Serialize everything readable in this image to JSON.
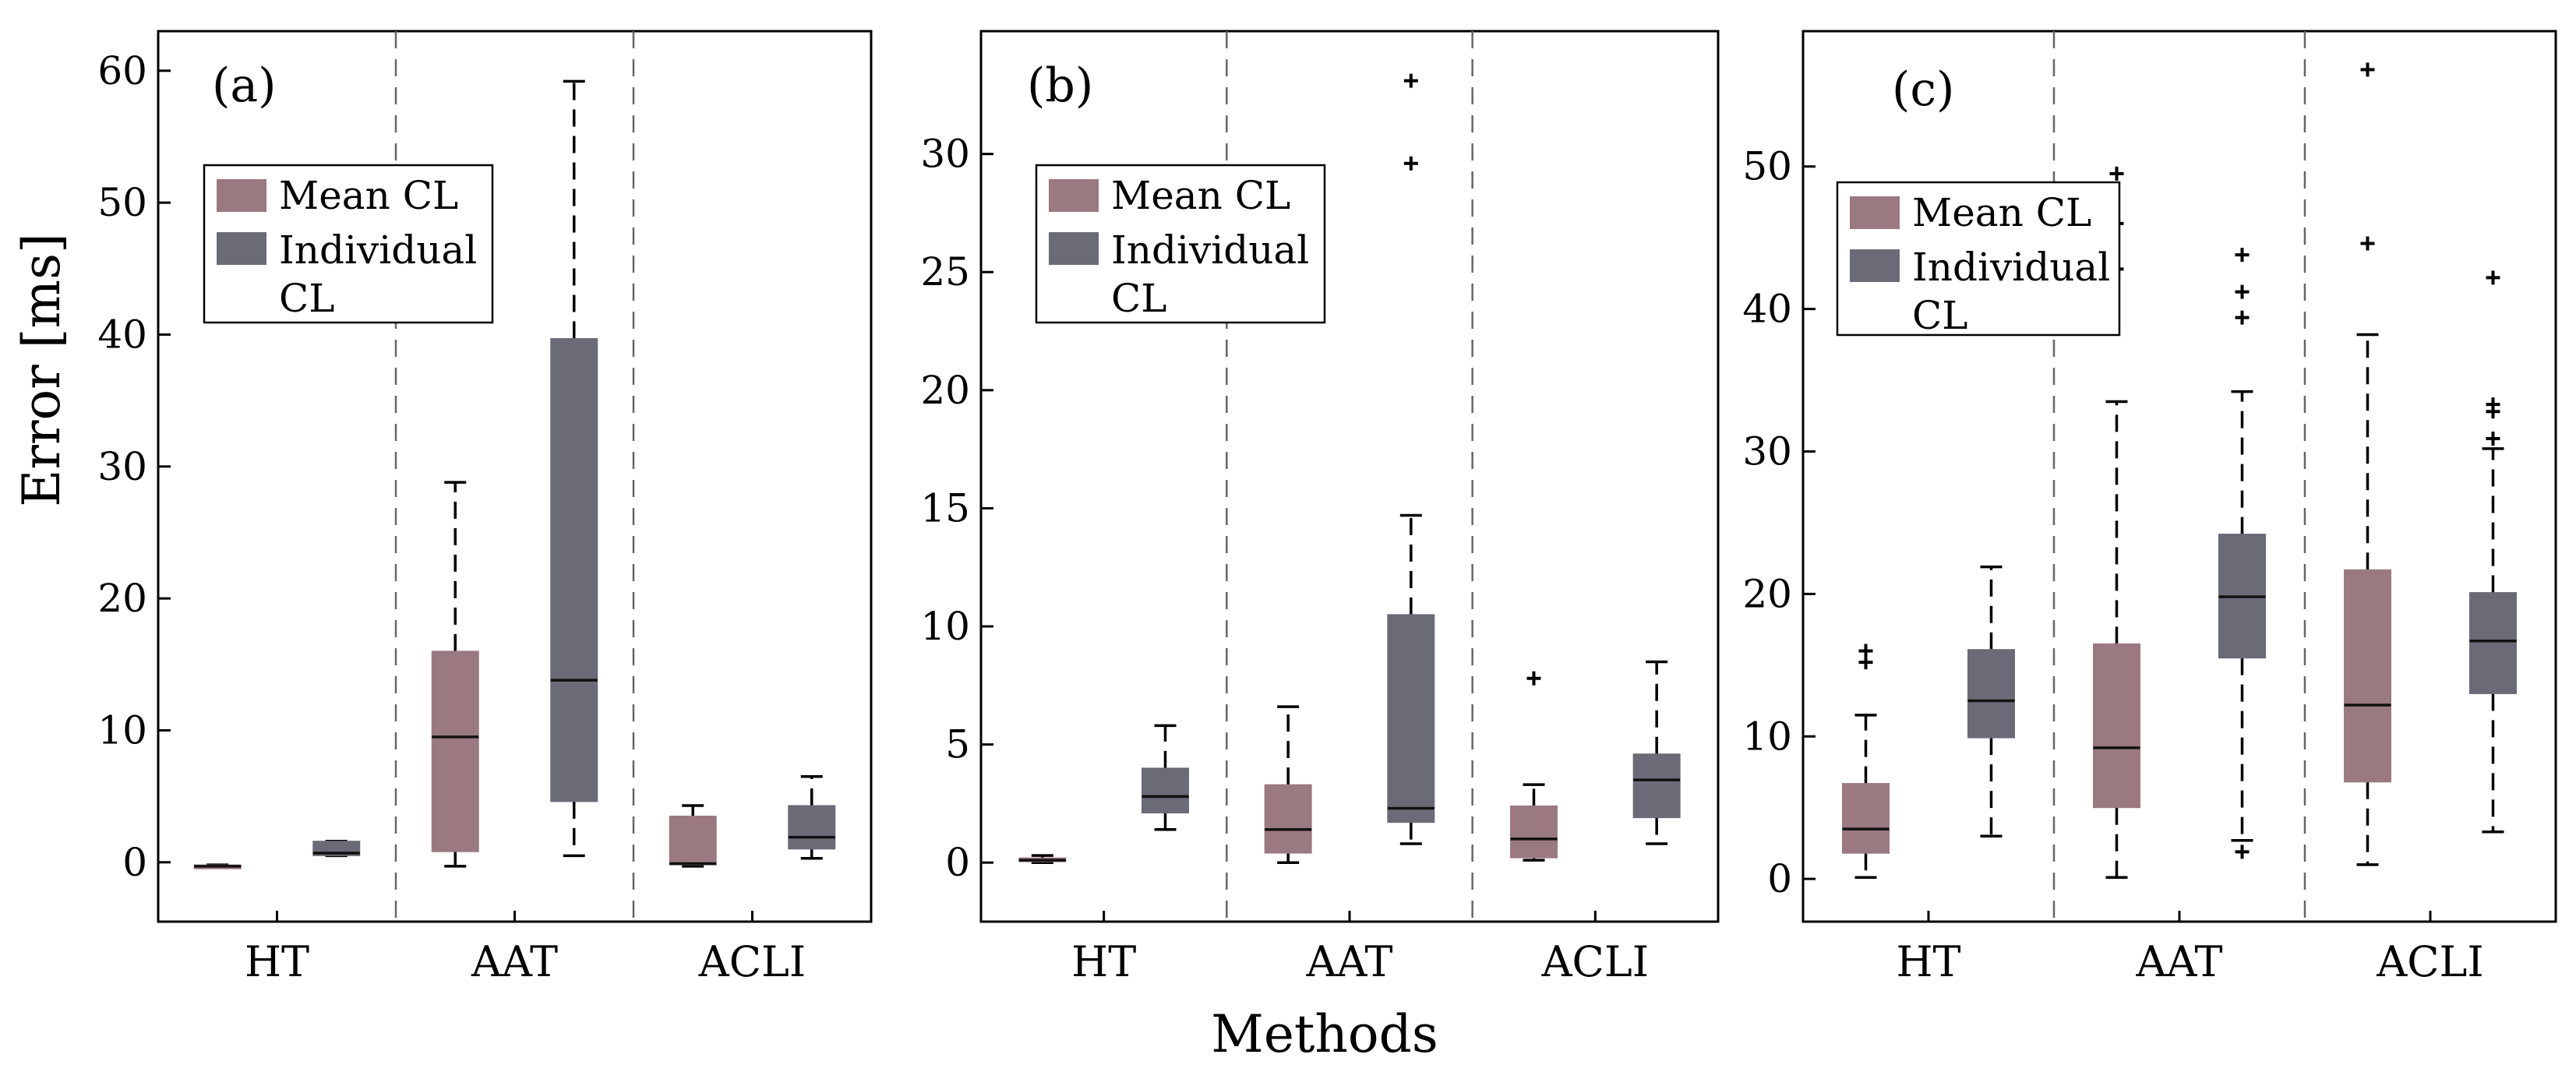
{
  "figure": {
    "ylabel": "Error [ms]",
    "xlabel": "Methods"
  },
  "legend": {
    "mean_label": "Mean CL",
    "individual_label_line1": "Individual",
    "individual_label_line2": "CL"
  },
  "colors": {
    "mean": "#9B7980",
    "individual": "#6B6B77",
    "frame": "#000000",
    "divider": "#666666"
  },
  "chart_data": [
    {
      "type": "box",
      "panel": "(a)",
      "categories": [
        "HT",
        "AAT",
        "ACLI"
      ],
      "ylim": [
        -4.5,
        63
      ],
      "yticks": [
        0,
        10,
        20,
        30,
        40,
        50,
        60
      ],
      "series": [
        {
          "name": "Mean CL",
          "boxes": [
            {
              "category": "HT",
              "whislo": -0.4,
              "q1": -0.4,
              "med": -0.3,
              "q3": -0.2,
              "whishi": -0.2,
              "fliers": []
            },
            {
              "category": "AAT",
              "whislo": -0.3,
              "q1": 0.8,
              "med": 9.5,
              "q3": 16.0,
              "whishi": 28.8,
              "fliers": []
            },
            {
              "category": "ACLI",
              "whislo": -0.3,
              "q1": -0.2,
              "med": -0.1,
              "q3": 3.5,
              "whishi": 4.3,
              "fliers": []
            }
          ]
        },
        {
          "name": "Individual CL",
          "boxes": [
            {
              "category": "HT",
              "whislo": 0.5,
              "q1": 0.5,
              "med": 0.7,
              "q3": 1.6,
              "whishi": 1.6,
              "fliers": []
            },
            {
              "category": "AAT",
              "whislo": 0.5,
              "q1": 4.6,
              "med": 13.8,
              "q3": 39.7,
              "whishi": 59.2,
              "fliers": []
            },
            {
              "category": "ACLI",
              "whislo": 0.3,
              "q1": 1.0,
              "med": 1.9,
              "q3": 4.3,
              "whishi": 6.5,
              "fliers": []
            }
          ]
        }
      ]
    },
    {
      "type": "box",
      "panel": "(b)",
      "categories": [
        "HT",
        "AAT",
        "ACLI"
      ],
      "ylim": [
        -2.5,
        35.2
      ],
      "yticks": [
        0,
        5,
        10,
        15,
        20,
        25,
        30
      ],
      "series": [
        {
          "name": "Mean CL",
          "boxes": [
            {
              "category": "HT",
              "whislo": 0.0,
              "q1": 0.05,
              "med": 0.1,
              "q3": 0.2,
              "whishi": 0.3,
              "fliers": []
            },
            {
              "category": "AAT",
              "whislo": 0.0,
              "q1": 0.4,
              "med": 1.4,
              "q3": 3.3,
              "whishi": 6.6,
              "fliers": []
            },
            {
              "category": "ACLI",
              "whislo": 0.1,
              "q1": 0.2,
              "med": 1.0,
              "q3": 2.4,
              "whishi": 3.3,
              "fliers": [
                7.8
              ]
            }
          ]
        },
        {
          "name": "Individual CL",
          "boxes": [
            {
              "category": "HT",
              "whislo": 1.4,
              "q1": 2.1,
              "med": 2.8,
              "q3": 4.0,
              "whishi": 5.8,
              "fliers": []
            },
            {
              "category": "AAT",
              "whislo": 0.8,
              "q1": 1.7,
              "med": 2.3,
              "q3": 10.5,
              "whishi": 14.7,
              "fliers": [
                29.6,
                33.1
              ]
            },
            {
              "category": "ACLI",
              "whislo": 0.8,
              "q1": 1.9,
              "med": 3.5,
              "q3": 4.6,
              "whishi": 8.5,
              "fliers": []
            }
          ]
        }
      ]
    },
    {
      "type": "box",
      "panel": "(c)",
      "categories": [
        "HT",
        "AAT",
        "ACLI"
      ],
      "ylim": [
        -3,
        59.5
      ],
      "yticks": [
        0,
        10,
        20,
        30,
        40,
        50
      ],
      "series": [
        {
          "name": "Mean CL",
          "boxes": [
            {
              "category": "HT",
              "whislo": 0.1,
              "q1": 1.8,
              "med": 3.5,
              "q3": 6.7,
              "whishi": 11.5,
              "fliers": [
                15.2,
                16.0
              ]
            },
            {
              "category": "AAT",
              "whislo": 0.1,
              "q1": 5.0,
              "med": 9.2,
              "q3": 16.5,
              "whishi": 33.5,
              "fliers": [
                42.8,
                46.0,
                49.5
              ]
            },
            {
              "category": "ACLI",
              "whislo": 1.0,
              "q1": 6.8,
              "med": 12.2,
              "q3": 21.7,
              "whishi": 38.2,
              "fliers": [
                44.6,
                56.8
              ]
            }
          ]
        },
        {
          "name": "Individual CL",
          "boxes": [
            {
              "category": "HT",
              "whislo": 3.0,
              "q1": 9.9,
              "med": 12.5,
              "q3": 16.1,
              "whishi": 21.9,
              "fliers": []
            },
            {
              "category": "AAT",
              "whislo": 2.7,
              "q1": 15.5,
              "med": 19.8,
              "q3": 24.2,
              "whishi": 34.2,
              "fliers": [
                1.9,
                39.4,
                41.2,
                43.8
              ]
            },
            {
              "category": "ACLI",
              "whislo": 3.3,
              "q1": 13.0,
              "med": 16.7,
              "q3": 20.1,
              "whishi": 30.2,
              "fliers": [
                30.9,
                32.8,
                33.3,
                42.2
              ]
            }
          ]
        }
      ]
    }
  ]
}
